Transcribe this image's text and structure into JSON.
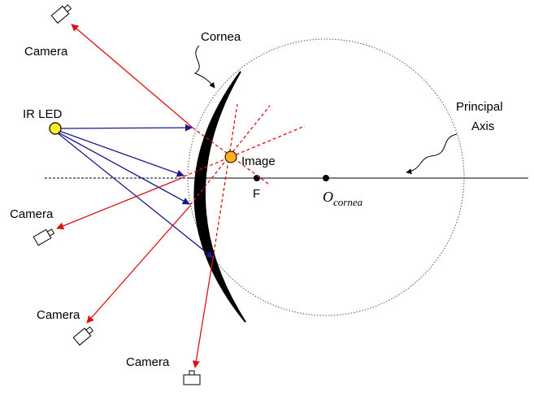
{
  "labels": {
    "camera_top": "Camera",
    "cornea": "Cornea",
    "ir_led": "IR LED",
    "image": "Image",
    "focus": "F",
    "center_main": "O",
    "center_sub": "cornea",
    "axis_line1": "Principal",
    "axis_line2": "Axis",
    "camera_left": "Camera",
    "camera_lower_left": "Camera",
    "camera_bottom": "Camera"
  }
}
